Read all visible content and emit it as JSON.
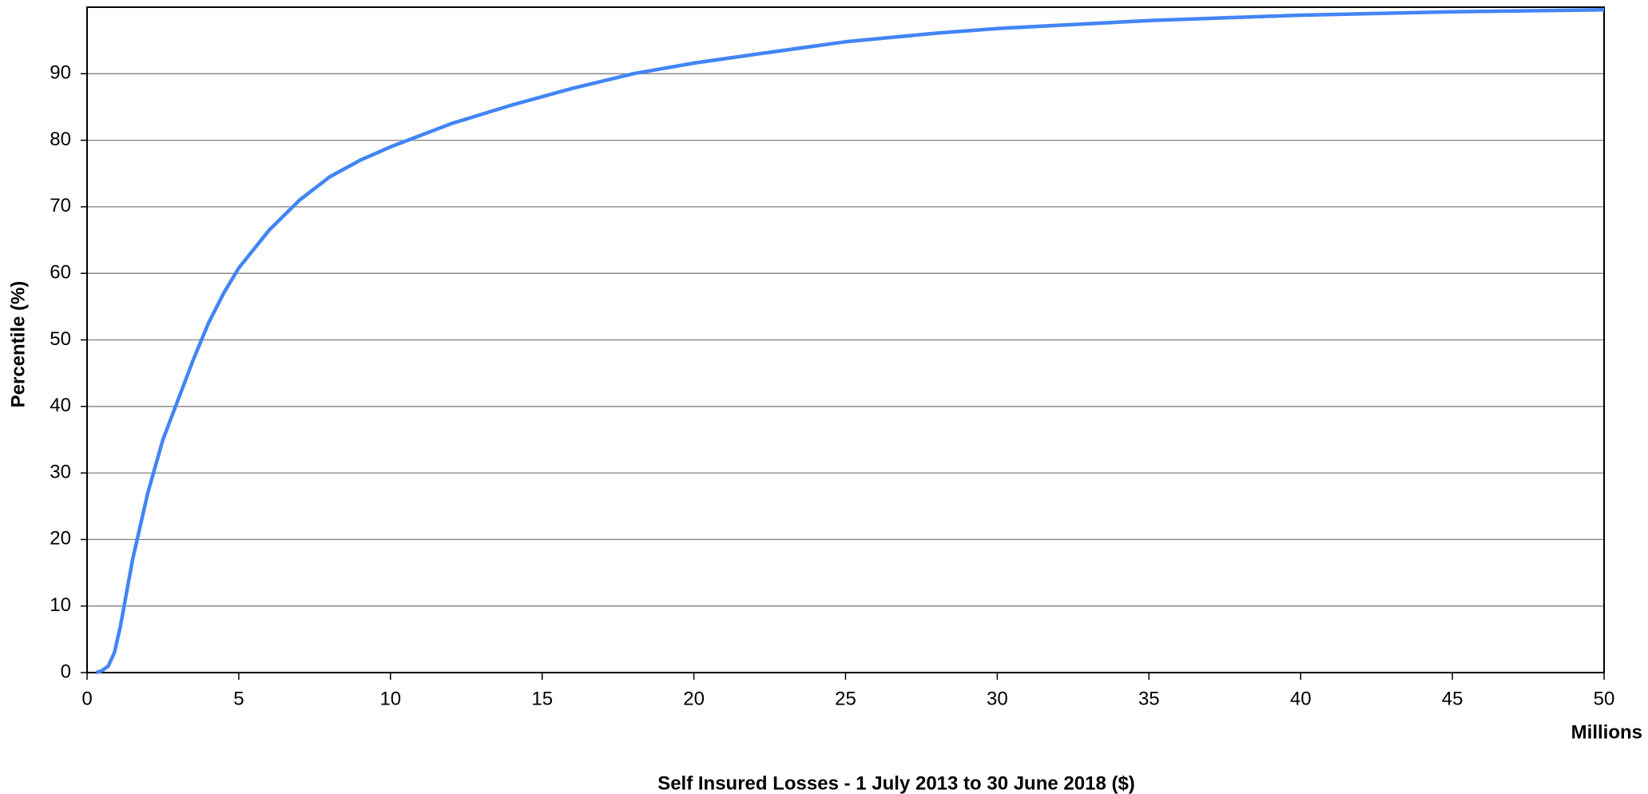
{
  "chart_data": {
    "type": "line",
    "x_label": "Self Insured Losses - 1 July 2013 to 30 June 2018 ($)",
    "x_unit_label": "Millions",
    "y_label": "Percentile (%)",
    "xlim": [
      0,
      50
    ],
    "xticks": [
      0,
      5,
      10,
      15,
      20,
      25,
      30,
      35,
      40,
      45,
      50
    ],
    "ylim": [
      0,
      100
    ],
    "yticks": [
      0,
      10,
      20,
      30,
      40,
      50,
      60,
      70,
      80,
      90
    ],
    "grid": true,
    "series": [
      {
        "color": "#4285f4",
        "x": [
          0.3,
          0.5,
          0.7,
          0.9,
          1.1,
          1.3,
          1.5,
          1.75,
          2,
          2.5,
          3,
          3.5,
          4,
          4.5,
          5,
          6,
          7,
          8,
          9,
          10,
          12,
          14,
          16,
          18,
          20,
          22,
          25,
          28,
          30,
          35,
          40,
          45,
          50
        ],
        "values": [
          0,
          0.3,
          1,
          3,
          7,
          12,
          17,
          22,
          27,
          35,
          41,
          47,
          52.5,
          57,
          60.8,
          66.5,
          71,
          74.5,
          77,
          79,
          82.5,
          85.3,
          87.8,
          90,
          91.6,
          92.9,
          94.8,
          96.1,
          96.8,
          98,
          98.8,
          99.3,
          99.6
        ]
      }
    ]
  }
}
